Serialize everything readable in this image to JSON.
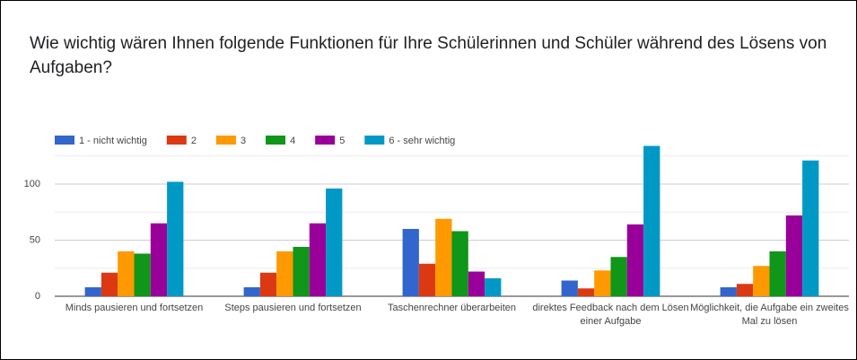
{
  "chart_data": {
    "type": "bar",
    "title": "Wie wichtig wären Ihnen folgende Funktionen für Ihre Schülerinnen und Schüler während des Lösens von Aufgaben?",
    "categories": [
      "Minds pausieren und fortsetzen",
      "Steps pausieren und fortsetzen",
      "Taschenrechner überarbeiten",
      "direktes Feedback nach dem Lösen einer Aufgabe",
      "Möglichkeit, die Aufgabe ein zweites Mal zu lösen"
    ],
    "series": [
      {
        "name": "1 - nicht wichtig",
        "color": "#3366cc",
        "values": [
          8,
          8,
          60,
          14,
          8
        ]
      },
      {
        "name": "2",
        "color": "#dc3912",
        "values": [
          21,
          21,
          29,
          7,
          11
        ]
      },
      {
        "name": "3",
        "color": "#ff9900",
        "values": [
          40,
          40,
          69,
          23,
          27
        ]
      },
      {
        "name": "4",
        "color": "#109618",
        "values": [
          38,
          44,
          58,
          35,
          40
        ]
      },
      {
        "name": "5",
        "color": "#990099",
        "values": [
          65,
          65,
          22,
          64,
          72
        ]
      },
      {
        "name": "6 - sehr wichtig",
        "color": "#0099c6",
        "values": [
          102,
          96,
          16,
          134,
          121
        ]
      }
    ],
    "ylim": [
      0,
      140
    ],
    "yticks": [
      0,
      50,
      100
    ],
    "minor_grid": [
      25,
      75,
      125
    ],
    "grid": true,
    "legend": "top"
  }
}
